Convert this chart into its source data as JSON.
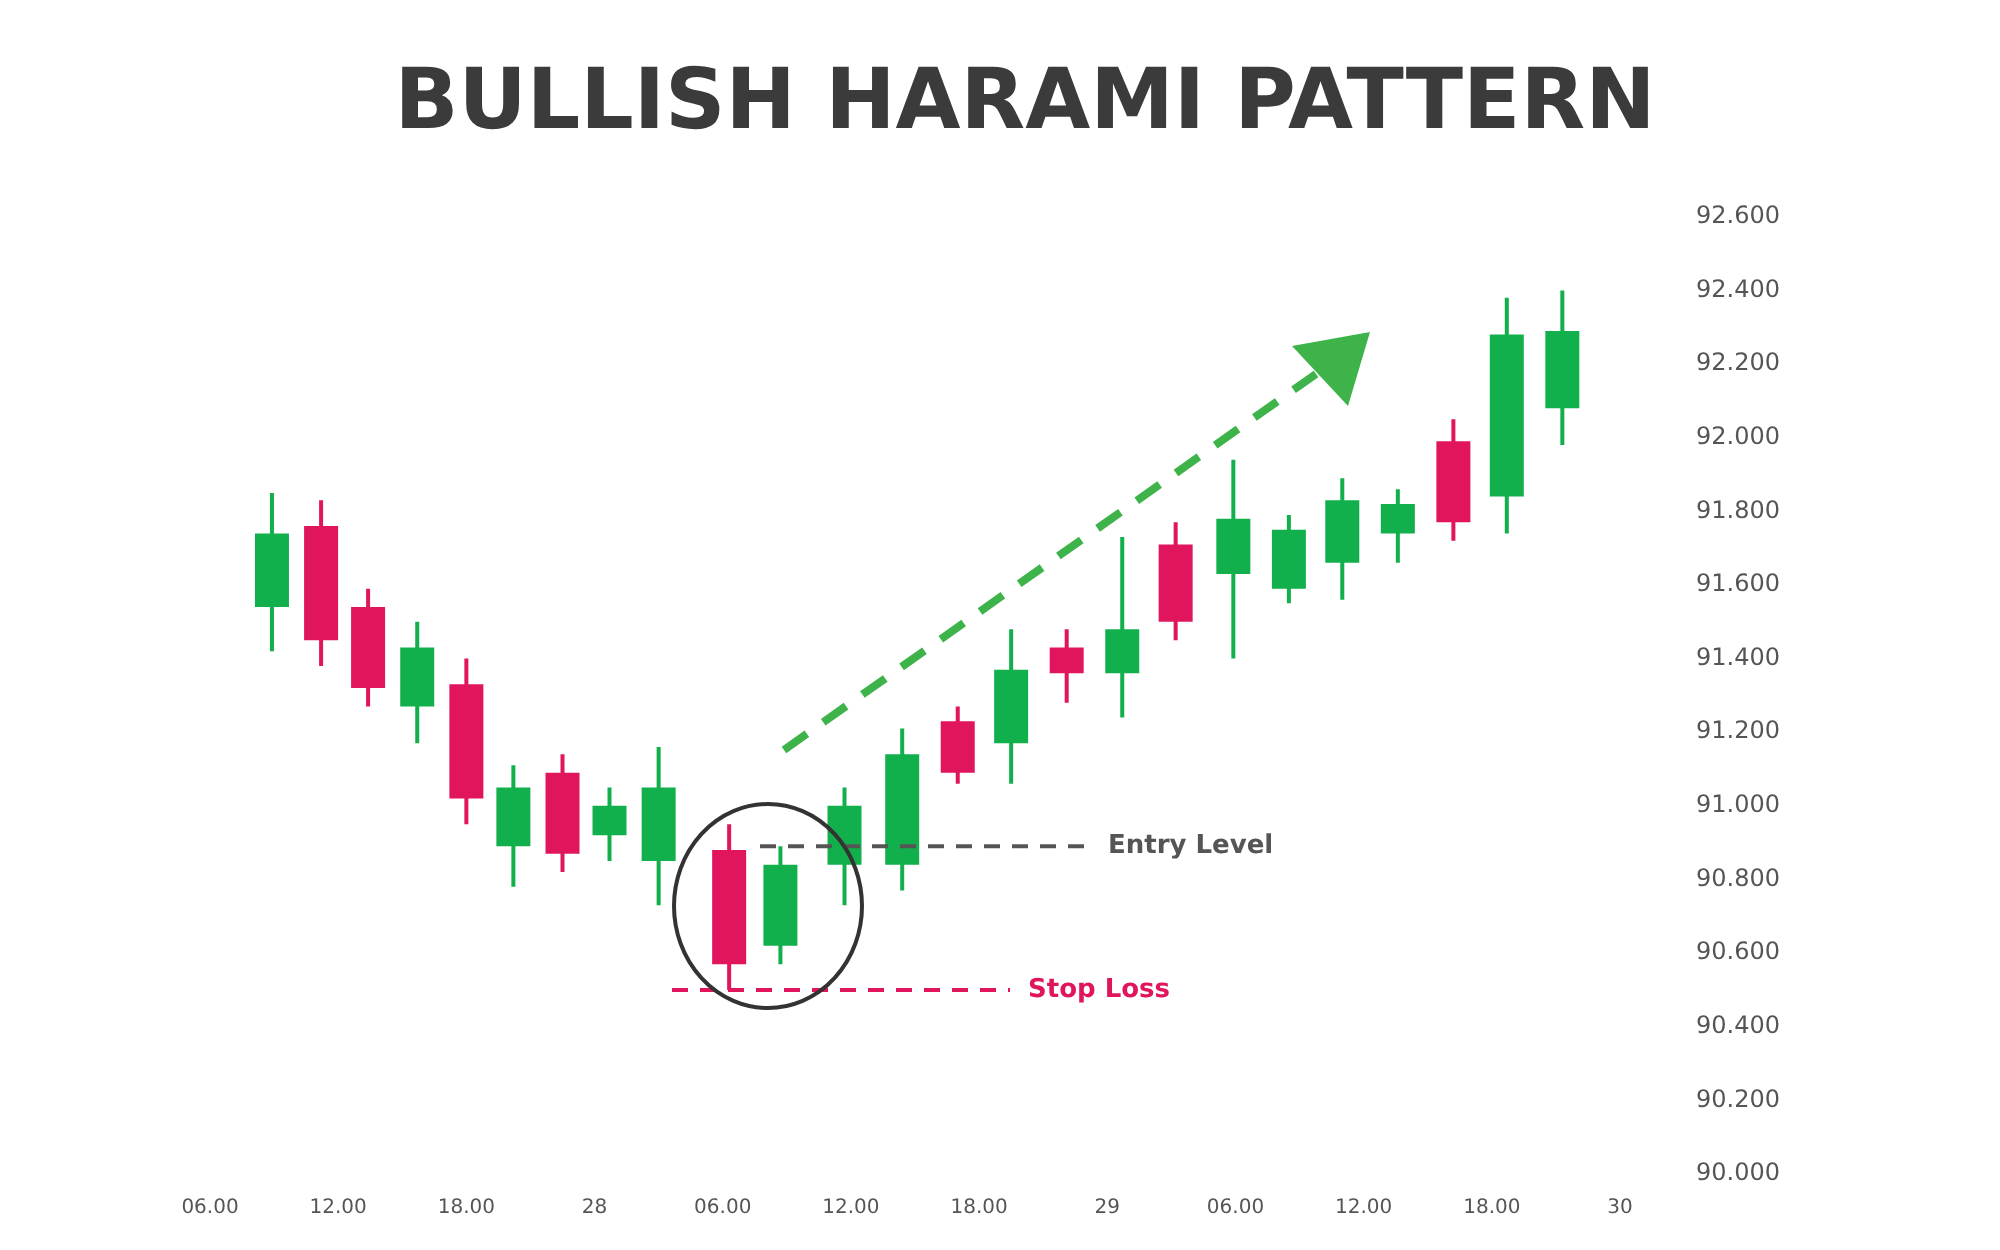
{
  "chart_data": {
    "type": "candlestick",
    "title": "BULLISH HARAMI PATTERN",
    "x": [
      "--01-27T08:54",
      "--01-27T11:12",
      "--01-27T13:24",
      "--01-27T15:42",
      "--01-27T18:00",
      "--01-27T20:12",
      "--01-27T22:30",
      "--01-28T00:42",
      "--01-28T03:00",
      "--01-28T06:18",
      "--01-28T08:42",
      "--01-28T11:42",
      "--01-28T14:24",
      "--01-28T17:00",
      "--01-28T19:30",
      "--01-28T22:06",
      "--01-29T00:42",
      "--01-29T03:12",
      "--01-29T05:54",
      "--01-29T08:30",
      "--01-29T11:00",
      "--01-29T13:36",
      "--01-29T16:12",
      "--01-29T18:42",
      "--01-29T21:18"
    ],
    "ohlc": [
      [
        91.54,
        91.85,
        91.42,
        91.74
      ],
      [
        91.76,
        91.83,
        91.38,
        91.45
      ],
      [
        91.54,
        91.59,
        91.27,
        91.32
      ],
      [
        91.27,
        91.5,
        91.17,
        91.43
      ],
      [
        91.33,
        91.4,
        90.95,
        91.02
      ],
      [
        90.89,
        91.11,
        90.78,
        91.05
      ],
      [
        91.09,
        91.14,
        90.82,
        90.87
      ],
      [
        90.92,
        91.05,
        90.85,
        91.0
      ],
      [
        90.85,
        91.16,
        90.73,
        91.05
      ],
      [
        90.88,
        90.95,
        90.5,
        90.57
      ],
      [
        90.62,
        90.89,
        90.57,
        90.84
      ],
      [
        90.84,
        91.05,
        90.73,
        91.0
      ],
      [
        90.84,
        91.21,
        90.77,
        91.14
      ],
      [
        91.23,
        91.27,
        91.06,
        91.09
      ],
      [
        91.17,
        91.48,
        91.06,
        91.37
      ],
      [
        91.43,
        91.48,
        91.28,
        91.36
      ],
      [
        91.36,
        91.73,
        91.24,
        91.48
      ],
      [
        91.71,
        91.77,
        91.45,
        91.5
      ],
      [
        91.63,
        91.94,
        91.4,
        91.78
      ],
      [
        91.59,
        91.79,
        91.55,
        91.75
      ],
      [
        91.66,
        91.89,
        91.56,
        91.83
      ],
      [
        91.74,
        91.86,
        91.66,
        91.82
      ],
      [
        91.99,
        92.05,
        91.72,
        91.77
      ],
      [
        91.84,
        92.38,
        91.74,
        92.28
      ],
      [
        92.08,
        92.4,
        91.98,
        92.29
      ]
    ],
    "colors": [
      "#12b04c",
      "#e0155d",
      "#e0155d",
      "#12b04c",
      "#e0155d",
      "#12b04c",
      "#e0155d",
      "#12b04c",
      "#12b04c",
      "#e0155d",
      "#12b04c",
      "#12b04c",
      "#12b04c",
      "#e0155d",
      "#12b04c",
      "#e0155d",
      "#12b04c",
      "#e0155d",
      "#12b04c",
      "#12b04c",
      "#12b04c",
      "#12b04c",
      "#e0155d",
      "#12b04c",
      "#12b04c"
    ],
    "xlim": [
      "--01-27T06:00",
      "--01-30T00:00"
    ],
    "xticks": [
      {
        "value": "--01-27T06:00",
        "label": "06.00"
      },
      {
        "value": "--01-27T12:00",
        "label": "12.00"
      },
      {
        "value": "--01-27T18:00",
        "label": "18.00"
      },
      {
        "value": "--01-28T00:00",
        "label": "28"
      },
      {
        "value": "--01-28T06:00",
        "label": "06.00"
      },
      {
        "value": "--01-28T12:00",
        "label": "12.00"
      },
      {
        "value": "--01-28T18:00",
        "label": "18.00"
      },
      {
        "value": "--01-29T00:00",
        "label": "29"
      },
      {
        "value": "--01-29T06:00",
        "label": "06.00"
      },
      {
        "value": "--01-29T12:00",
        "label": "12.00"
      },
      {
        "value": "--01-29T18:00",
        "label": "18.00"
      },
      {
        "value": "--01-30T00:00",
        "label": "30"
      }
    ],
    "ylim": [
      90,
      92.6
    ],
    "yticks": [
      {
        "value": 90,
        "label": "90.000"
      },
      {
        "value": 90.2,
        "label": "90.200"
      },
      {
        "value": 90.4,
        "label": "90.400"
      },
      {
        "value": 90.6,
        "label": "90.600"
      },
      {
        "value": 90.8,
        "label": "90.800"
      },
      {
        "value": 91,
        "label": "91.000"
      },
      {
        "value": 91.2,
        "label": "91.200"
      },
      {
        "value": 91.4,
        "label": "91.400"
      },
      {
        "value": 91.6,
        "label": "91.600"
      },
      {
        "value": 91.8,
        "label": "91.800"
      },
      {
        "value": 92,
        "label": "92.000"
      },
      {
        "value": 92.2,
        "label": "92.200"
      },
      {
        "value": 92.4,
        "label": "92.400"
      },
      {
        "value": 92.6,
        "label": "92.600"
      }
    ],
    "ref_lines": [
      {
        "axis": "y",
        "value": 90.89,
        "label": "Entry Level",
        "color": "#555555",
        "line_style": "dashed"
      },
      {
        "axis": "y",
        "value": 90.5,
        "label": "Stop Loss",
        "color": "#e0155d",
        "line_style": "dashed"
      }
    ]
  }
}
